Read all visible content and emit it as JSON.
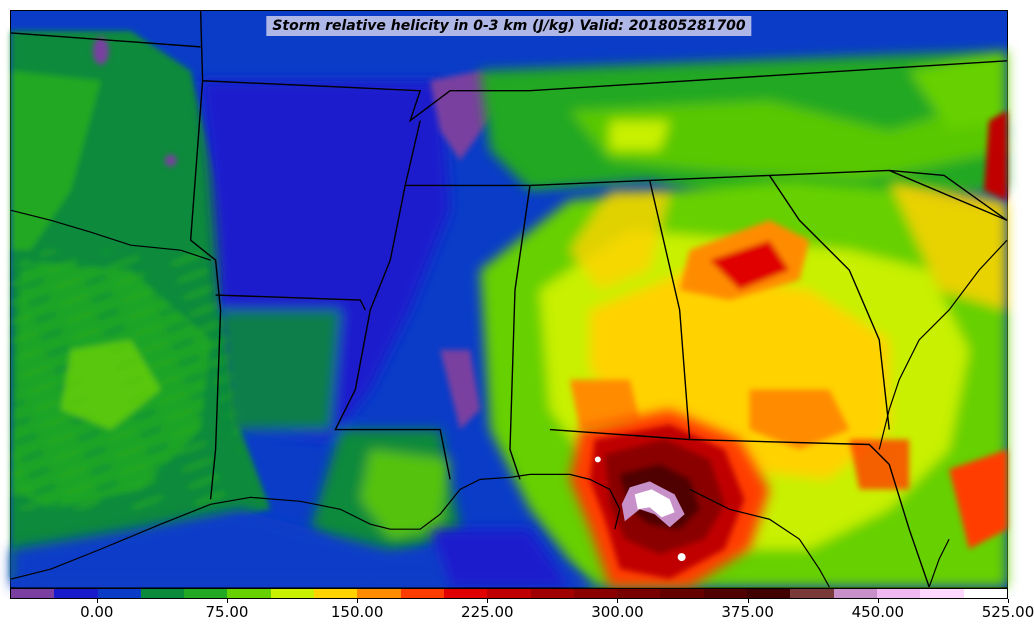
{
  "title": "Storm relative helicity in 0-3 km (J/kg) Valid: 201805281700",
  "colorbar": {
    "colors": [
      "#7a3fa0",
      "#1a1acd",
      "#0a3cc8",
      "#0a8a3a",
      "#22a822",
      "#66d000",
      "#c8f000",
      "#ffd200",
      "#ff8c00",
      "#ff3c00",
      "#e00000",
      "#c00000",
      "#a00000",
      "#8a0000",
      "#780000",
      "#640000",
      "#500000",
      "#400000",
      "#7a3a3a",
      "#c890c8",
      "#f0b8f0",
      "#ffd8ff",
      "#ffffff"
    ],
    "ticks": [
      {
        "label": "0.00",
        "idx": 2
      },
      {
        "label": "75.00",
        "idx": 5
      },
      {
        "label": "150.00",
        "idx": 8
      },
      {
        "label": "225.00",
        "idx": 11
      },
      {
        "label": "300.00",
        "idx": 14
      },
      {
        "label": "375.00",
        "idx": 17
      },
      {
        "label": "450.00",
        "idx": 20
      },
      {
        "label": "525.00",
        "idx": 23
      }
    ]
  }
}
